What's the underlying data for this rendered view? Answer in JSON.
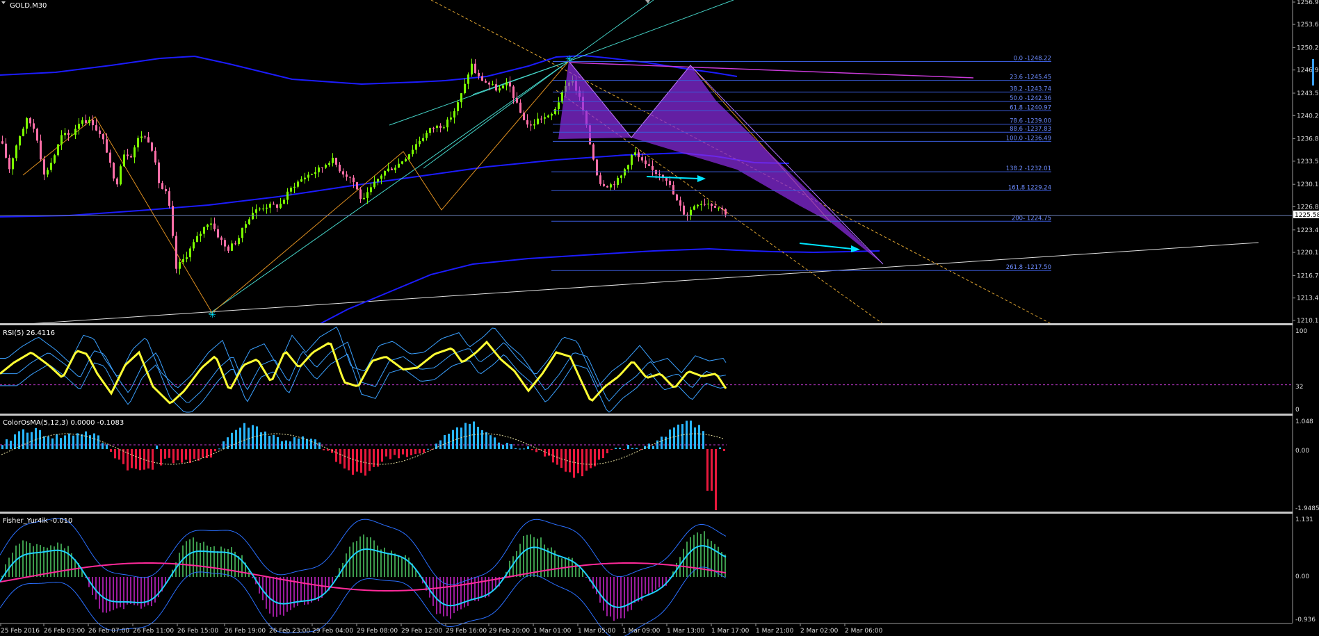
{
  "main": {
    "symbol": "GOLD,M30",
    "current_price": "1225.58",
    "price_ticks": [
      "1256.95",
      "1253.67",
      "1250.27",
      "1246.97",
      "1243.57",
      "1240.27",
      "1236.87",
      "1233.57",
      "1230.17",
      "1226.87",
      "1223.47",
      "1220.17",
      "1216.77",
      "1213.47",
      "1210.17"
    ],
    "fib_levels": [
      {
        "label": "0.0  -1248.22",
        "price": 1248.22
      },
      {
        "label": "23.6  -1245.45",
        "price": 1245.45
      },
      {
        "label": "38.2  -1243.74",
        "price": 1243.74
      },
      {
        "label": "50.0  -1242.36",
        "price": 1242.36
      },
      {
        "label": "61.8  -1240.97",
        "price": 1240.97
      },
      {
        "label": "78.6  -1239.00",
        "price": 1239.0
      },
      {
        "label": "88.6  -1237.83",
        "price": 1237.83
      },
      {
        "label": "100.0  -1236.49",
        "price": 1236.49
      },
      {
        "label": "138.2  -1232.01",
        "price": 1232.01
      },
      {
        "label": "161.8  1229.24",
        "price": 1229.24
      },
      {
        "label": "200-  1224.75",
        "price": 1224.75
      },
      {
        "label": "261.8  -1217.50",
        "price": 1217.5
      }
    ]
  },
  "rsi": {
    "title": "RSI(5) 26.4116",
    "ticks": [
      "100",
      "32",
      "0"
    ]
  },
  "osma": {
    "title": "ColorOsMA(5,12,3) 0.0000 -0.1083",
    "ticks": [
      "1.048",
      "0.00",
      "-1.9485"
    ]
  },
  "fisher": {
    "title": "Fisher_Yur4ik -0.010",
    "ticks": [
      "1.131",
      "0.00",
      "-0.936"
    ]
  },
  "time_axis": [
    "25 Feb 2016",
    "26 Feb 03:00",
    "26 Feb 07:00",
    "26 Feb 11:00",
    "26 Feb 15:00",
    "26 Feb 19:00",
    "26 Feb 23:00",
    "29 Feb 04:00",
    "29 Feb 08:00",
    "29 Feb 12:00",
    "29 Feb 16:00",
    "29 Feb 20:00",
    "1 Mar 01:00",
    "1 Mar 05:00",
    "1 Mar 09:00",
    "1 Mar 13:00",
    "1 Mar 17:00",
    "1 Mar 21:00",
    "2 Mar 02:00",
    "2 Mar 06:00"
  ],
  "colors": {
    "bull": "#7cfc00",
    "bear": "#ff6fa8",
    "ma": "#1c1cff",
    "fib": "#3a5bd9",
    "rsi": "#ffff33",
    "band": "#3aa0ff",
    "osma_pos": "#29b6ff",
    "osma_neg": "#e8183c",
    "fisher_pos": "#3c9a4c",
    "fisher_neg": "#9a1c9c",
    "fisher_fast": "#1fd0ff",
    "fisher_slow": "#ff2a9a",
    "pattern": "#8a2be2",
    "arrow": "#00e5ff"
  },
  "chart_data": [
    {
      "type": "candlestick",
      "title": "GOLD,M30",
      "ylim": [
        1210.17,
        1256.95
      ],
      "price_anchors": [
        [
          0,
          1236.5
        ],
        [
          12,
          1232.5
        ],
        [
          25,
          1237.0
        ],
        [
          38,
          1239.8
        ],
        [
          50,
          1238.0
        ],
        [
          62,
          1231.5
        ],
        [
          75,
          1234.0
        ],
        [
          88,
          1237.5
        ],
        [
          100,
          1237.3
        ],
        [
          115,
          1239.8
        ],
        [
          132,
          1239.2
        ],
        [
          150,
          1236.0
        ],
        [
          165,
          1229.5
        ],
        [
          175,
          1234.8
        ],
        [
          187,
          1234.5
        ],
        [
          200,
          1237.5
        ],
        [
          215,
          1236.5
        ],
        [
          228,
          1230.0
        ],
        [
          240,
          1228.5
        ],
        [
          252,
          1217.8
        ],
        [
          265,
          1219.5
        ],
        [
          280,
          1222.0
        ],
        [
          300,
          1225.0
        ],
        [
          310,
          1223.0
        ],
        [
          325,
          1220.5
        ],
        [
          340,
          1222.0
        ],
        [
          360,
          1226.0
        ],
        [
          380,
          1227.0
        ],
        [
          400,
          1227.0
        ],
        [
          420,
          1230.0
        ],
        [
          440,
          1231.5
        ],
        [
          460,
          1232.5
        ],
        [
          475,
          1234.0
        ],
        [
          490,
          1232.0
        ],
        [
          505,
          1231.0
        ],
        [
          520,
          1227.5
        ],
        [
          535,
          1230.0
        ],
        [
          550,
          1232.0
        ],
        [
          570,
          1233.0
        ],
        [
          585,
          1234.5
        ],
        [
          600,
          1236.5
        ],
        [
          620,
          1238.5
        ],
        [
          640,
          1239.0
        ],
        [
          655,
          1241.5
        ],
        [
          668,
          1245.0
        ],
        [
          676,
          1248.0
        ],
        [
          685,
          1246.0
        ],
        [
          700,
          1245.0
        ],
        [
          715,
          1244.0
        ],
        [
          730,
          1245.0
        ],
        [
          745,
          1241.0
        ],
        [
          760,
          1238.5
        ],
        [
          775,
          1240.0
        ],
        [
          790,
          1240.0
        ],
        [
          805,
          1243.0
        ],
        [
          820,
          1246.0
        ],
        [
          835,
          1242.0
        ],
        [
          845,
          1237.0
        ],
        [
          860,
          1230.5
        ],
        [
          875,
          1230.0
        ],
        [
          890,
          1231.0
        ],
        [
          910,
          1235.0
        ],
        [
          925,
          1233.0
        ],
        [
          940,
          1232.0
        ],
        [
          955,
          1231.5
        ],
        [
          970,
          1228.0
        ],
        [
          985,
          1225.5
        ],
        [
          1000,
          1227.5
        ],
        [
          1015,
          1227.5
        ],
        [
          1030,
          1227.0
        ],
        [
          1045,
          1225.8
        ]
      ]
    },
    {
      "type": "line",
      "title": "RSI(5) 26.4116",
      "ylim": [
        0,
        100
      ],
      "rsi_anchors": [
        [
          0,
          45
        ],
        [
          20,
          58
        ],
        [
          45,
          70
        ],
        [
          70,
          55
        ],
        [
          90,
          40
        ],
        [
          110,
          72
        ],
        [
          125,
          68
        ],
        [
          140,
          45
        ],
        [
          160,
          22
        ],
        [
          180,
          55
        ],
        [
          200,
          70
        ],
        [
          220,
          30
        ],
        [
          245,
          10
        ],
        [
          265,
          25
        ],
        [
          290,
          52
        ],
        [
          310,
          66
        ],
        [
          330,
          25
        ],
        [
          350,
          55
        ],
        [
          370,
          62
        ],
        [
          390,
          35
        ],
        [
          410,
          72
        ],
        [
          430,
          52
        ],
        [
          450,
          70
        ],
        [
          475,
          82
        ],
        [
          495,
          35
        ],
        [
          515,
          30
        ],
        [
          535,
          60
        ],
        [
          555,
          65
        ],
        [
          580,
          50
        ],
        [
          600,
          52
        ],
        [
          625,
          68
        ],
        [
          650,
          75
        ],
        [
          665,
          58
        ],
        [
          685,
          70
        ],
        [
          700,
          82
        ],
        [
          720,
          62
        ],
        [
          740,
          48
        ],
        [
          760,
          25
        ],
        [
          780,
          45
        ],
        [
          800,
          70
        ],
        [
          820,
          65
        ],
        [
          835,
          38
        ],
        [
          850,
          12
        ],
        [
          870,
          30
        ],
        [
          890,
          42
        ],
        [
          910,
          60
        ],
        [
          930,
          40
        ],
        [
          950,
          45
        ],
        [
          970,
          28
        ],
        [
          990,
          48
        ],
        [
          1010,
          42
        ],
        [
          1030,
          45
        ],
        [
          1045,
          26.4
        ]
      ]
    },
    {
      "type": "bar",
      "title": "ColorOsMA(5,12,3) 0.0000 -0.1083",
      "ylim": [
        -1.9485,
        1.048
      ]
    },
    {
      "type": "bar",
      "title": "Fisher_Yur4ik -0.010",
      "ylim": [
        -0.936,
        1.131
      ]
    }
  ]
}
